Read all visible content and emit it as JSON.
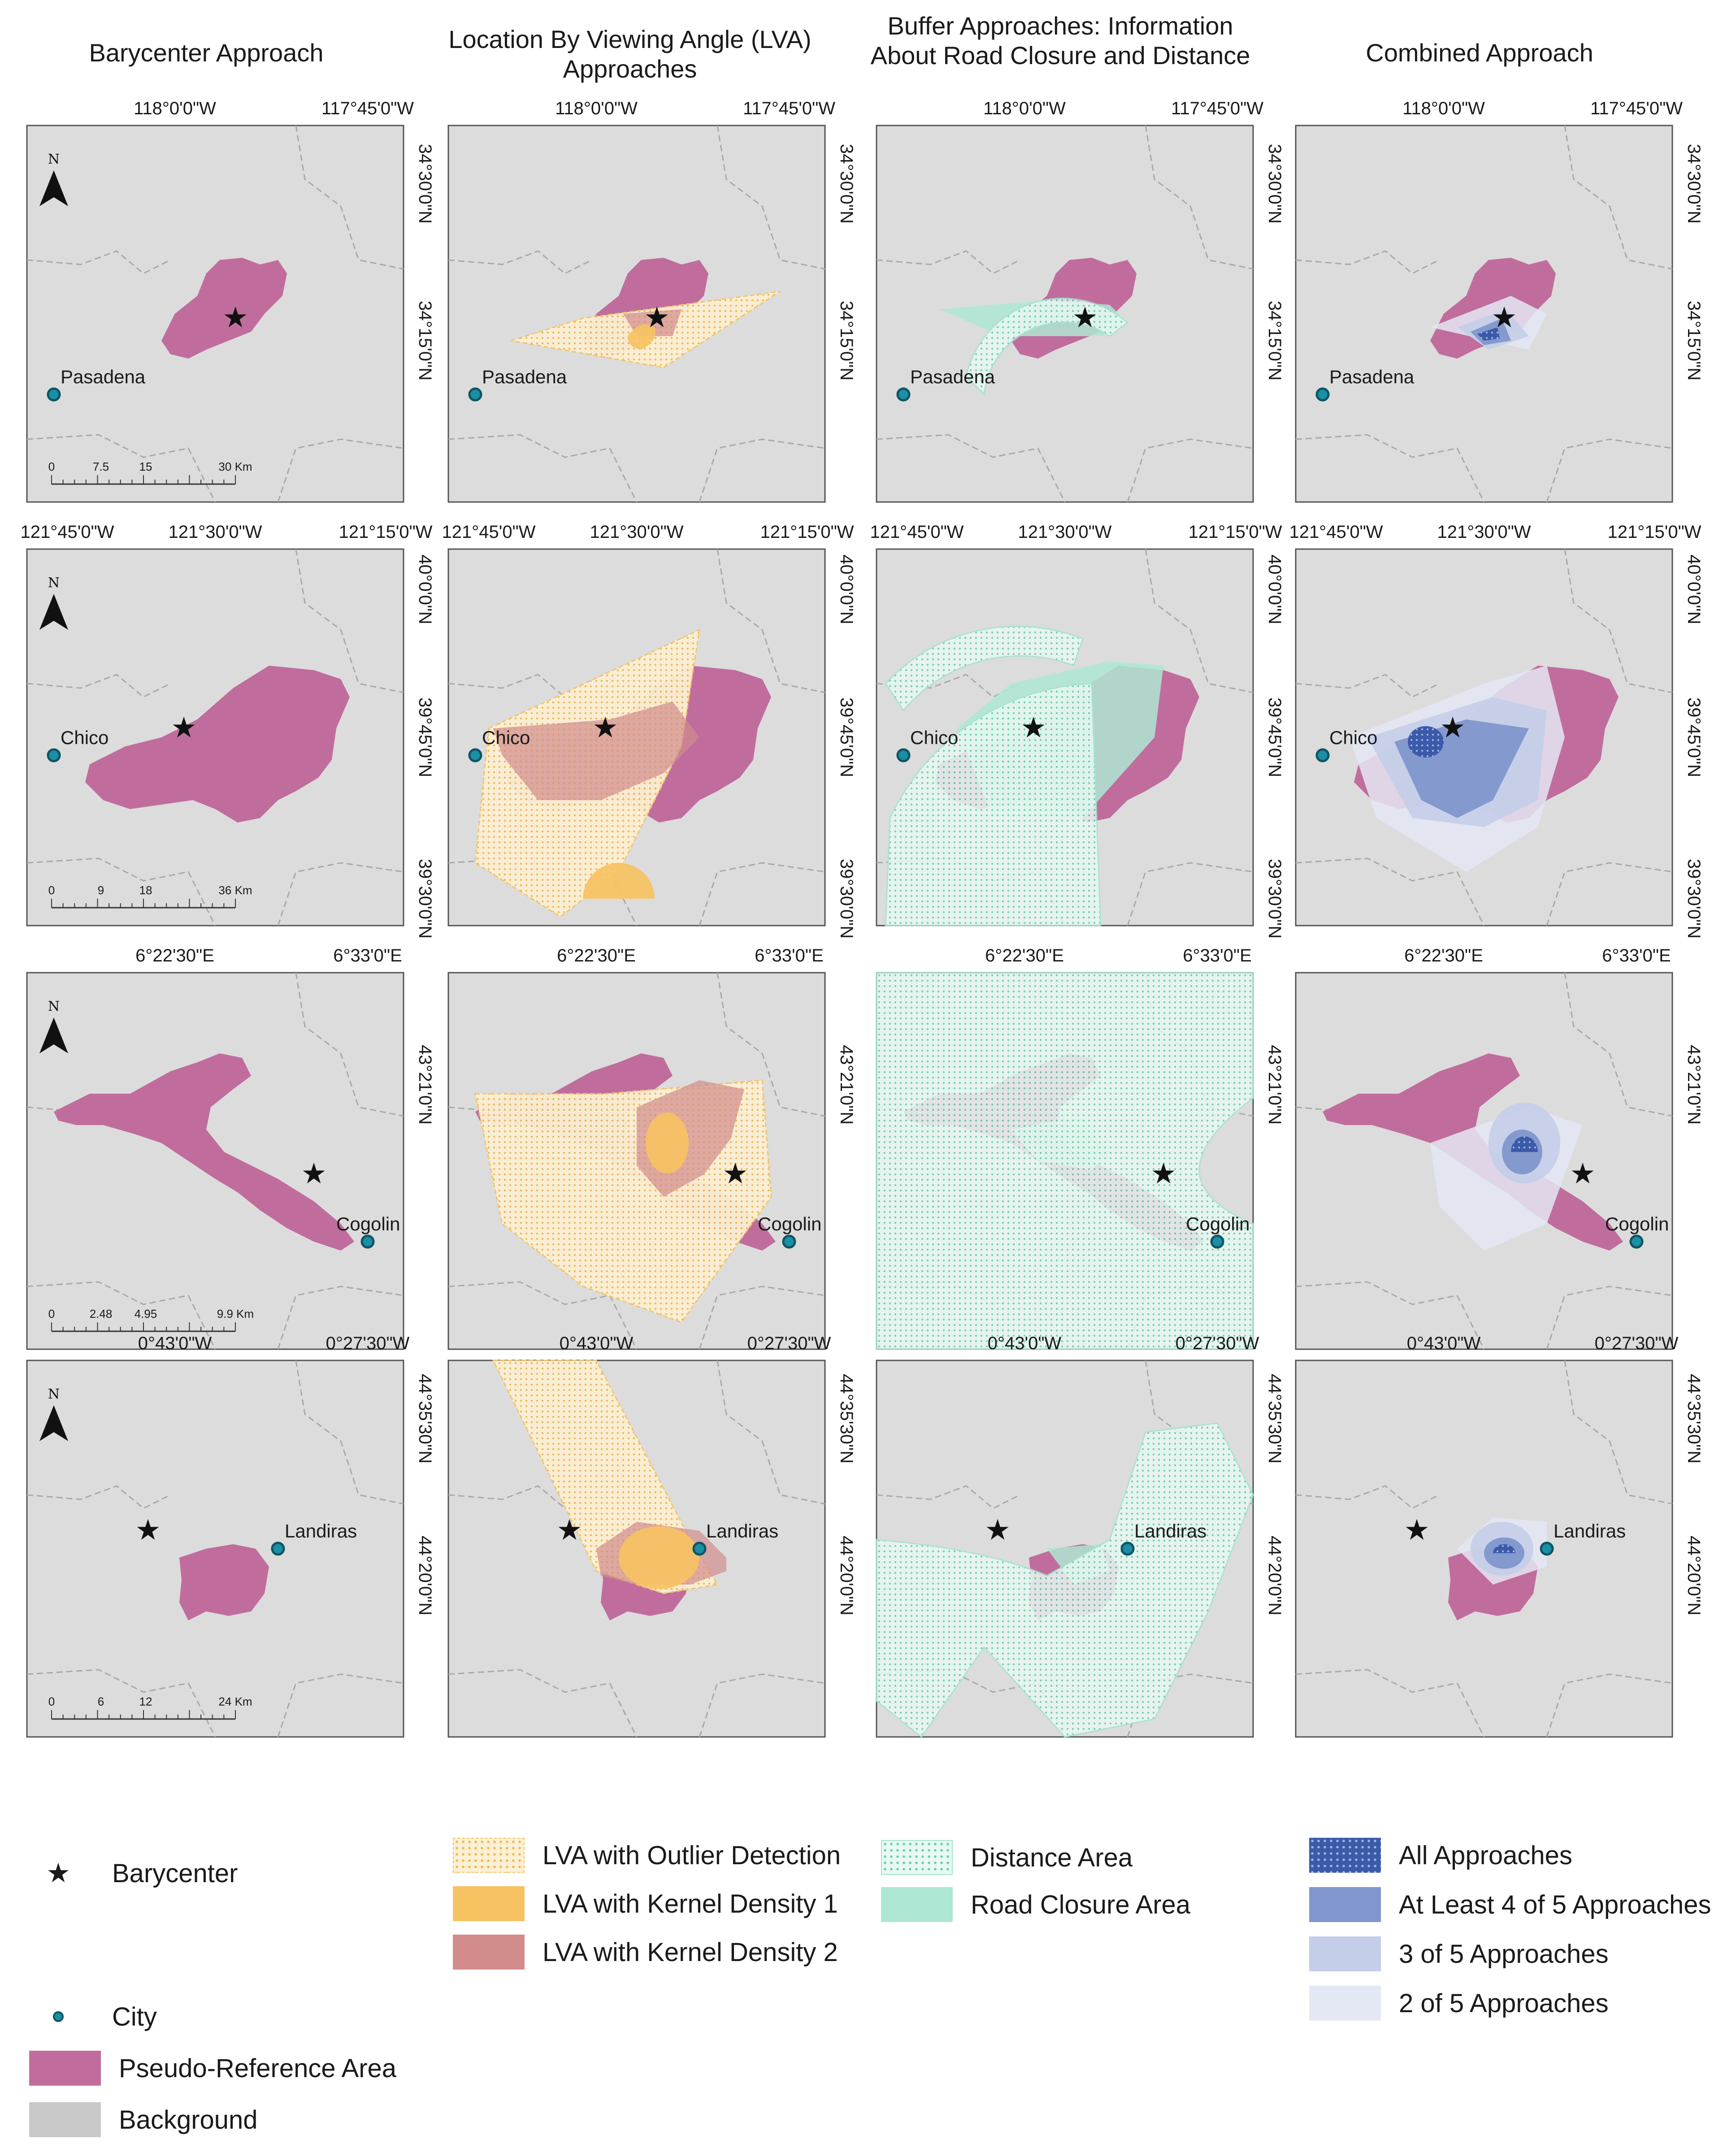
{
  "column_titles": [
    "Barycenter Approach",
    "Location By Viewing Angle (LVA) Approaches",
    "Buffer Approaches: Information About Road Closure and Distance",
    "Combined Approach"
  ],
  "rows": [
    {
      "city": "Pasadena",
      "top_labels": [
        "118°0'0\"W",
        "117°45'0\"W"
      ],
      "right_labels": [
        "34°30'0\"N",
        "34°15'0\"N"
      ],
      "scale": {
        "ticks": [
          "0",
          "7.5",
          "15",
          "30 Km"
        ]
      }
    },
    {
      "city": "Chico",
      "top_labels": [
        "121°45'0\"W",
        "121°30'0\"W",
        "121°15'0\"W"
      ],
      "right_labels": [
        "40°0'0\"N",
        "39°45'0\"N",
        "39°30'0\"N"
      ],
      "scale": {
        "ticks": [
          "0",
          "9",
          "18",
          "36 Km"
        ]
      }
    },
    {
      "city": "Cogolin",
      "top_labels": [
        "6°22'30\"E",
        "6°33'0\"E"
      ],
      "right_labels": [
        "43°21'0\"N"
      ],
      "scale": {
        "ticks": [
          "0",
          "2.48",
          "4.95",
          "9.9 Km"
        ]
      }
    },
    {
      "city": "Landiras",
      "top_labels": [
        "0°43'0\"W",
        "0°27'30\"W"
      ],
      "right_labels": [
        "44°35'30\"N",
        "44°20'0\"N"
      ],
      "scale": {
        "ticks": [
          "0",
          "6",
          "12",
          "24 Km"
        ]
      }
    }
  ],
  "north_label": "N",
  "legend": {
    "barycenter": "Barycenter",
    "city": "City",
    "pseudo_reference": "Pseudo-Reference Area",
    "background": "Background",
    "lva_outlier": "LVA with Outlier Detection",
    "lva_kd1": "LVA with Kernel Density 1",
    "lva_kd2": "LVA with Kernel Density 2",
    "distance_area": "Distance Area",
    "road_closure": "Road Closure Area",
    "all_approaches": "All Approaches",
    "at_least_4": "At Least 4 of 5 Approaches",
    "three_of_5": "3 of 5 Approaches",
    "two_of_5": "2 of 5 Approaches"
  },
  "colors": {
    "background": "#dcdcdc",
    "pseudo_reference": "#c06d9d",
    "city": "#1a8fa6",
    "lva_outlier": "#f2c46a",
    "lva_kd1": "#f6c262",
    "lva_kd2": "#d18b8b",
    "distance": "#a6e3cf",
    "road_closure": "#aee7d4",
    "all": "#3b5aa8",
    "four": "#8196cc",
    "three": "#c4cee8",
    "two": "#e4e8f4"
  },
  "icons": {
    "barycenter": "star-icon",
    "city": "city-dot-icon",
    "north": "north-arrow-icon"
  }
}
